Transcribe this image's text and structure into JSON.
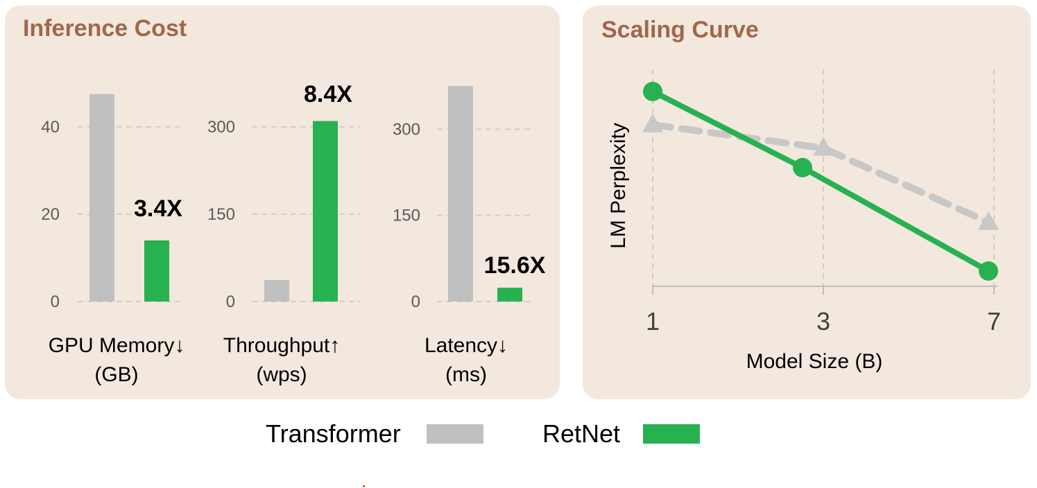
{
  "panels": {
    "inference_title": "Inference Cost",
    "scaling_title": "Scaling Curve"
  },
  "legend": {
    "transformer_label": "Transformer",
    "retnet_label": "RetNet"
  },
  "colors": {
    "transformer": "#c0c0c0",
    "retnet": "#27b150",
    "panel_bg": "#f3e8de",
    "title": "#a0674b"
  },
  "chart_data": [
    {
      "type": "bar",
      "categories": [
        "Transformer",
        "RetNet"
      ],
      "series": [
        {
          "values": [
            47.5,
            14
          ]
        }
      ],
      "yticks": [
        0,
        20,
        40
      ],
      "ylim": [
        0,
        50
      ],
      "xlabel": [
        "GPU Memory↓",
        "(GB)"
      ],
      "annotation": "3.4X",
      "grid": true
    },
    {
      "type": "bar",
      "categories": [
        "Transformer",
        "RetNet"
      ],
      "series": [
        {
          "values": [
            37,
            310
          ]
        }
      ],
      "yticks": [
        0,
        150,
        300
      ],
      "ylim": [
        0,
        375
      ],
      "xlabel": [
        "Throughput↑",
        "(wps)"
      ],
      "annotation": "8.4X",
      "grid": true
    },
    {
      "type": "bar",
      "categories": [
        "Transformer",
        "RetNet"
      ],
      "series": [
        {
          "values": [
            375,
            24
          ]
        }
      ],
      "yticks": [
        0,
        150,
        300
      ],
      "ylim": [
        0,
        380
      ],
      "xlabel": [
        "Latency↓",
        "(ms)"
      ],
      "annotation": "15.6X",
      "grid": true
    },
    {
      "type": "line",
      "x": [
        1,
        3,
        7
      ],
      "xticks": [
        "1",
        "3",
        "7"
      ],
      "xlabel": "Model Size (B)",
      "ylabel": "LM Perplexity",
      "ylim": [
        0,
        1
      ],
      "series": [
        {
          "name": "Transformer",
          "values": [
            0.83,
            0.71,
            0.33
          ],
          "style": "dashed",
          "marker": "triangle"
        },
        {
          "name": "RetNet",
          "values": [
            1.0,
            0.61,
            0.08
          ],
          "style": "solid",
          "marker": "circle"
        }
      ],
      "grid": true
    }
  ]
}
